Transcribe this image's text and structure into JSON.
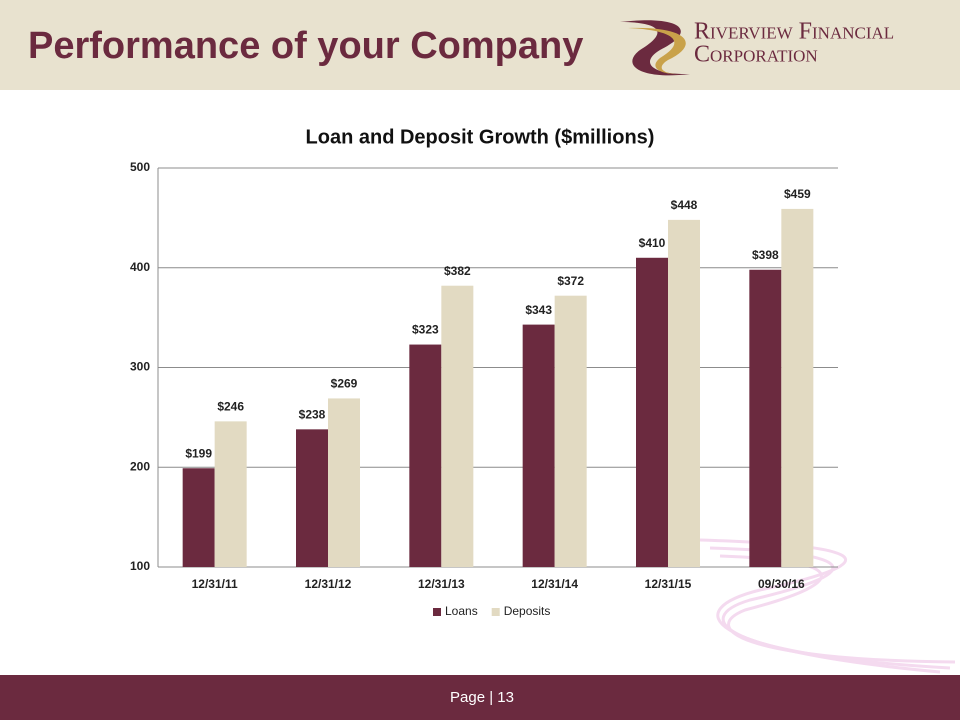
{
  "header": {
    "title": "Performance of your Company",
    "logo_line1": "Riverview Financial",
    "logo_line2": "Corporation"
  },
  "chart_data": {
    "type": "bar",
    "title": "Loan and Deposit Growth ($millions)",
    "categories": [
      "12/31/11",
      "12/31/12",
      "12/31/13",
      "12/31/14",
      "12/31/15",
      "09/30/16"
    ],
    "series": [
      {
        "name": "Loans",
        "color": "#6b2a3f",
        "values": [
          199,
          238,
          323,
          343,
          410,
          398
        ],
        "value_labels": [
          "$199",
          "$238",
          "$323",
          "$343",
          "$410",
          "$398"
        ]
      },
      {
        "name": "Deposits",
        "color": "#e2dac2",
        "values": [
          246,
          269,
          382,
          372,
          448,
          459
        ],
        "value_labels": [
          "$246",
          "$269",
          "$382",
          "$372",
          "$448",
          "$459"
        ]
      }
    ],
    "ylim": [
      100,
      500
    ],
    "yticks": [
      100,
      200,
      300,
      400,
      500
    ],
    "grid": true,
    "legend": "bottom"
  },
  "footer": {
    "page": "Page | 13"
  }
}
